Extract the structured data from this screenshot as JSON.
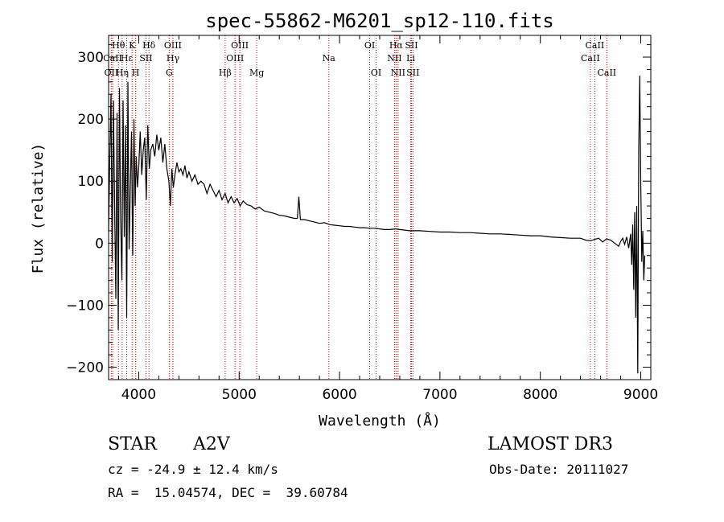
{
  "chart_data": {
    "type": "line",
    "title": "spec-55862-M6201_sp12-110.fits",
    "xlabel": "Wavelength (Å)",
    "ylabel": "Flux (relative)",
    "xlim": [
      3700,
      9100
    ],
    "ylim": [
      -220,
      335
    ],
    "xticks": [
      4000,
      5000,
      6000,
      7000,
      8000,
      9000
    ],
    "yticks": [
      -200,
      -100,
      0,
      100,
      200,
      300
    ],
    "line_color": "#000000",
    "marker_color": "#cc0000",
    "series": [
      {
        "name": "flux",
        "x": [
          3700,
          3712,
          3724,
          3736,
          3748,
          3760,
          3772,
          3784,
          3796,
          3808,
          3820,
          3832,
          3844,
          3856,
          3868,
          3880,
          3892,
          3904,
          3916,
          3928,
          3940,
          3952,
          3964,
          3976,
          3988,
          4000,
          4015,
          4030,
          4045,
          4060,
          4075,
          4090,
          4105,
          4120,
          4140,
          4160,
          4180,
          4200,
          4220,
          4240,
          4260,
          4280,
          4300,
          4315,
          4330,
          4345,
          4360,
          4380,
          4400,
          4420,
          4440,
          4460,
          4480,
          4500,
          4530,
          4560,
          4590,
          4620,
          4650,
          4680,
          4710,
          4740,
          4770,
          4800,
          4830,
          4860,
          4890,
          4920,
          4950,
          4980,
          5010,
          5040,
          5080,
          5120,
          5160,
          5200,
          5250,
          5300,
          5350,
          5400,
          5450,
          5500,
          5550,
          5580,
          5595,
          5610,
          5650,
          5700,
          5750,
          5800,
          5850,
          5900,
          5950,
          6000,
          6050,
          6100,
          6150,
          6200,
          6250,
          6300,
          6350,
          6400,
          6450,
          6500,
          6560,
          6600,
          6650,
          6700,
          6750,
          6800,
          6900,
          7000,
          7100,
          7200,
          7300,
          7400,
          7500,
          7600,
          7700,
          7800,
          7900,
          8000,
          8100,
          8200,
          8300,
          8400,
          8450,
          8500,
          8540,
          8580,
          8620,
          8660,
          8700,
          8740,
          8780,
          8800,
          8820,
          8840,
          8860,
          8880,
          8900,
          8910,
          8920,
          8930,
          8940,
          8950,
          8960,
          8970,
          8980,
          8990,
          9000,
          9010,
          9020,
          9030,
          9040
        ],
        "y": [
          20,
          140,
          240,
          -30,
          230,
          60,
          -90,
          210,
          -140,
          250,
          40,
          -60,
          230,
          10,
          190,
          -120,
          260,
          -10,
          90,
          180,
          -20,
          200,
          60,
          140,
          90,
          120,
          180,
          110,
          150,
          170,
          70,
          190,
          120,
          150,
          160,
          140,
          175,
          150,
          170,
          130,
          160,
          120,
          100,
          60,
          120,
          90,
          110,
          130,
          115,
          120,
          110,
          125,
          105,
          115,
          100,
          110,
          95,
          100,
          95,
          80,
          95,
          85,
          75,
          85,
          70,
          80,
          65,
          75,
          65,
          72,
          60,
          68,
          62,
          60,
          55,
          58,
          52,
          50,
          48,
          45,
          44,
          42,
          40,
          40,
          75,
          38,
          38,
          36,
          34,
          32,
          33,
          30,
          29,
          28,
          27,
          27,
          26,
          25,
          25,
          24,
          24,
          23,
          22,
          22,
          23,
          22,
          21,
          20,
          20,
          20,
          19,
          18,
          18,
          17,
          17,
          16,
          15,
          15,
          14,
          13,
          12,
          12,
          10,
          9,
          8,
          8,
          5,
          4,
          6,
          8,
          2,
          7,
          5,
          0,
          -5,
          3,
          8,
          -2,
          10,
          -8,
          15,
          -35,
          30,
          -75,
          50,
          -120,
          60,
          -210,
          150,
          270,
          100,
          -30,
          20,
          -60,
          -20
        ]
      }
    ],
    "spectral_lines": [
      {
        "label": "Hθ",
        "wave": 3798,
        "row": 1
      },
      {
        "label": "OII",
        "wave": 3727,
        "row": 3
      },
      {
        "label": "CaII",
        "wave": 3740,
        "row": 2
      },
      {
        "label": "Hη",
        "wave": 3835,
        "row": 3
      },
      {
        "label": "Hε",
        "wave": 3880,
        "row": 2
      },
      {
        "label": "K",
        "wave": 3934,
        "row": 1
      },
      {
        "label": "H",
        "wave": 3969,
        "row": 3
      },
      {
        "label": "SII",
        "wave": 4072,
        "row": 2
      },
      {
        "label": "Hδ",
        "wave": 4102,
        "row": 1
      },
      {
        "label": "OIII",
        "wave": 4340,
        "row": 1
      },
      {
        "label": "Hγ",
        "wave": 4341,
        "row": 2
      },
      {
        "label": "G",
        "wave": 4304,
        "row": 3
      },
      {
        "label": "Hβ",
        "wave": 4861,
        "row": 3
      },
      {
        "label": "OIII",
        "wave": 5007,
        "row": 1
      },
      {
        "label": "OIII",
        "wave": 4959,
        "row": 2
      },
      {
        "label": "Mg",
        "wave": 5175,
        "row": 3
      },
      {
        "label": "Na",
        "wave": 5893,
        "row": 2
      },
      {
        "label": "OI",
        "wave": 6300,
        "row": 1
      },
      {
        "label": "OI",
        "wave": 6364,
        "row": 3
      },
      {
        "label": "Hα",
        "wave": 6563,
        "row": 1
      },
      {
        "label": "NII",
        "wave": 6548,
        "row": 2
      },
      {
        "label": "NII",
        "wave": 6583,
        "row": 3
      },
      {
        "label": "SII",
        "wave": 6716,
        "row": 1
      },
      {
        "label": "Li",
        "wave": 6708,
        "row": 2
      },
      {
        "label": "SII",
        "wave": 6731,
        "row": 3
      },
      {
        "label": "CaII",
        "wave": 8498,
        "row": 2
      },
      {
        "label": "CaII",
        "wave": 8542,
        "row": 1
      },
      {
        "label": "CaII",
        "wave": 8662,
        "row": 3
      }
    ]
  },
  "info": {
    "object_class": "STAR",
    "subclass": "A2V",
    "survey": "LAMOST DR3",
    "cz": "cz = -24.9 ± 12.4 km/s",
    "obs_date": "Obs-Date: 20111027",
    "coords": "RA =  15.04574, DEC =  39.60784"
  }
}
